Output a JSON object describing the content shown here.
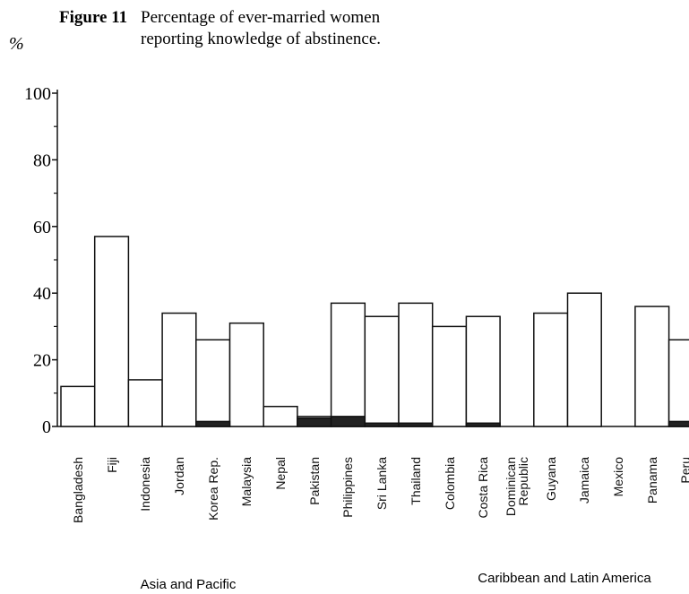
{
  "chart_data": {
    "type": "bar",
    "figure_label": "Figure 11",
    "title_lines": [
      "Percentage of ever-married women",
      "reporting knowledge of abstinence."
    ],
    "y_label": "%",
    "categories": [
      "Bangladesh",
      "Fiji",
      "Indonesia",
      "Jordan",
      "Korea Rep.",
      "Malaysia",
      "Nepal",
      "Pakistan",
      "Philippines",
      "Sri Lanka",
      "Thailand",
      "Colombia",
      "Costa Rica",
      "Dominican Republic",
      "Guyana",
      "Jamaica",
      "Mexico",
      "Panama",
      "Peru"
    ],
    "series": [
      {
        "color": "#ffffff",
        "values": [
          12,
          57,
          14,
          34,
          26,
          31,
          6,
          3,
          37,
          33,
          37,
          30,
          33,
          null,
          34,
          40,
          null,
          36,
          26
        ]
      },
      {
        "color": "#222222",
        "values": [
          null,
          null,
          null,
          null,
          1.5,
          null,
          null,
          2.5,
          3,
          1,
          1,
          null,
          1,
          null,
          null,
          null,
          null,
          null,
          1.5
        ]
      }
    ],
    "groups": [
      "Asia and Pacific",
      "Caribbean and Latin America"
    ],
    "ylim": [
      0,
      100
    ],
    "yticks": [
      0,
      20,
      40,
      60,
      80,
      100
    ]
  }
}
